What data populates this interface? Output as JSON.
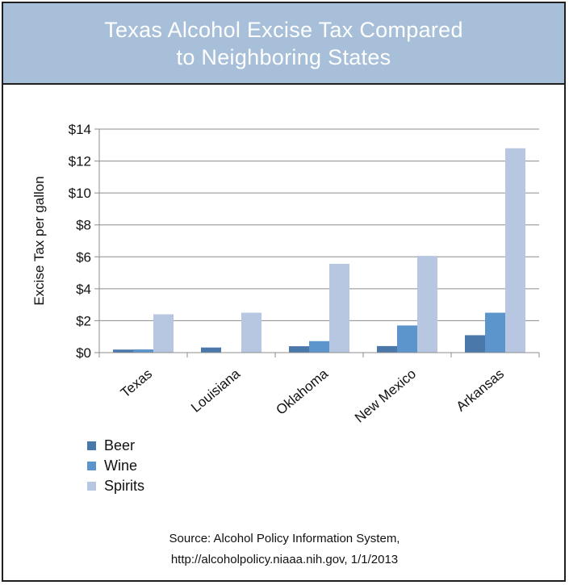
{
  "header": {
    "title_line1": "Texas Alcohol Excise Tax Compared",
    "title_line2": "to Neighboring States"
  },
  "source": {
    "line1": "Source: Alcohol Policy Information System,",
    "line2": "http://alcoholpolicy.niaaa.nih.gov, 1/1/2013"
  },
  "colors": {
    "header_bg": "#a7bfd8",
    "beer": "#4a78ab",
    "wine": "#5b95cc",
    "spirits": "#b7c7e2"
  },
  "chart_data": {
    "type": "bar",
    "title": "Texas Alcohol Excise Tax Compared to Neighboring States",
    "xlabel": "",
    "ylabel": "Excise Tax per gallon",
    "ylim": [
      0,
      14
    ],
    "y_ticks": [
      "$0",
      "$2",
      "$4",
      "$6",
      "$8",
      "$10",
      "$12",
      "$14"
    ],
    "y_tick_values": [
      0,
      2,
      4,
      6,
      8,
      10,
      12,
      14
    ],
    "grid": true,
    "legend_position": "bottom-left",
    "categories": [
      "Texas",
      "Louisiana",
      "Oklahoma",
      "New Mexico",
      "Arkansas"
    ],
    "series": [
      {
        "name": "Beer",
        "values": [
          0.19,
          0.32,
          0.4,
          0.41,
          1.09
        ]
      },
      {
        "name": "Wine",
        "values": [
          0.2,
          0.0,
          0.72,
          1.7,
          2.5
        ]
      },
      {
        "name": "Spirits",
        "values": [
          2.4,
          2.5,
          5.56,
          6.06,
          12.8
        ]
      }
    ]
  }
}
